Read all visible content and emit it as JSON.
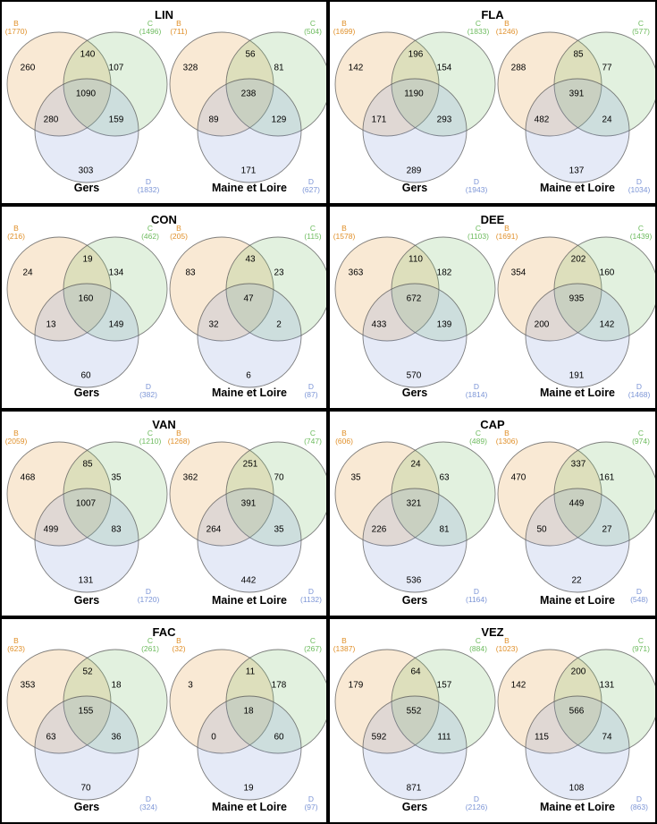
{
  "colors": {
    "B": "#E0902A",
    "C": "#6DBB5E",
    "D": "#7C95D6"
  },
  "set_names": [
    "B",
    "C",
    "D"
  ],
  "locations": [
    "Gers",
    "Maine et Loire"
  ],
  "panels": [
    {
      "title": "LIN",
      "venns": [
        {
          "location": "Gers",
          "totals": {
            "B": "(1770)",
            "C": "(1496)",
            "D": "(1832)"
          },
          "regions": {
            "b": "260",
            "c": "107",
            "d": "303",
            "bc": "140",
            "bd": "280",
            "cd": "159",
            "bcd": "1090"
          }
        },
        {
          "location": "Maine et Loire",
          "totals": {
            "B": "(711)",
            "C": "(504)",
            "D": "(627)"
          },
          "regions": {
            "b": "328",
            "c": "81",
            "d": "171",
            "bc": "56",
            "bd": "89",
            "cd": "129",
            "bcd": "238"
          }
        }
      ]
    },
    {
      "title": "FLA",
      "venns": [
        {
          "location": "Gers",
          "totals": {
            "B": "(1699)",
            "C": "(1833)",
            "D": "(1943)"
          },
          "regions": {
            "b": "142",
            "c": "154",
            "d": "289",
            "bc": "196",
            "bd": "171",
            "cd": "293",
            "bcd": "1190"
          }
        },
        {
          "location": "Maine et Loire",
          "totals": {
            "B": "(1246)",
            "C": "(577)",
            "D": "(1034)"
          },
          "regions": {
            "b": "288",
            "c": "77",
            "d": "137",
            "bc": "85",
            "bd": "482",
            "cd": "24",
            "bcd": "391"
          }
        }
      ]
    },
    {
      "title": "CON",
      "venns": [
        {
          "location": "Gers",
          "totals": {
            "B": "(216)",
            "C": "(462)",
            "D": "(382)"
          },
          "regions": {
            "b": "24",
            "c": "134",
            "d": "60",
            "bc": "19",
            "bd": "13",
            "cd": "149",
            "bcd": "160"
          }
        },
        {
          "location": "Maine et Loire",
          "totals": {
            "B": "(205)",
            "C": "(115)",
            "D": "(87)"
          },
          "regions": {
            "b": "83",
            "c": "23",
            "d": "6",
            "bc": "43",
            "bd": "32",
            "cd": "2",
            "bcd": "47"
          }
        }
      ]
    },
    {
      "title": "DEE",
      "venns": [
        {
          "location": "Gers",
          "totals": {
            "B": "(1578)",
            "C": "(1103)",
            "D": "(1814)"
          },
          "regions": {
            "b": "363",
            "c": "182",
            "d": "570",
            "bc": "110",
            "bd": "433",
            "cd": "139",
            "bcd": "672"
          }
        },
        {
          "location": "Maine et Loire",
          "totals": {
            "B": "(1691)",
            "C": "(1439)",
            "D": "(1468)"
          },
          "regions": {
            "b": "354",
            "c": "160",
            "d": "191",
            "bc": "202",
            "bd": "200",
            "cd": "142",
            "bcd": "935"
          }
        }
      ]
    },
    {
      "title": "VAN",
      "venns": [
        {
          "location": "Gers",
          "totals": {
            "B": "(2059)",
            "C": "(1210)",
            "D": "(1720)"
          },
          "regions": {
            "b": "468",
            "c": "35",
            "d": "131",
            "bc": "85",
            "bd": "499",
            "cd": "83",
            "bcd": "1007"
          }
        },
        {
          "location": "Maine et Loire",
          "totals": {
            "B": "(1268)",
            "C": "(747)",
            "D": "(1132)"
          },
          "regions": {
            "b": "362",
            "c": "70",
            "d": "442",
            "bc": "251",
            "bd": "264",
            "cd": "35",
            "bcd": "391"
          }
        }
      ]
    },
    {
      "title": "CAP",
      "venns": [
        {
          "location": "Gers",
          "totals": {
            "B": "(606)",
            "C": "(489)",
            "D": "(1164)"
          },
          "regions": {
            "b": "35",
            "c": "63",
            "d": "536",
            "bc": "24",
            "bd": "226",
            "cd": "81",
            "bcd": "321"
          }
        },
        {
          "location": "Maine et Loire",
          "totals": {
            "B": "(1306)",
            "C": "(974)",
            "D": "(548)"
          },
          "regions": {
            "b": "470",
            "c": "161",
            "d": "22",
            "bc": "337",
            "bd": "50",
            "cd": "27",
            "bcd": "449"
          }
        }
      ]
    },
    {
      "title": "FAC",
      "venns": [
        {
          "location": "Gers",
          "totals": {
            "B": "(623)",
            "C": "(261)",
            "D": "(324)"
          },
          "regions": {
            "b": "353",
            "c": "18",
            "d": "70",
            "bc": "52",
            "bd": "63",
            "cd": "36",
            "bcd": "155"
          }
        },
        {
          "location": "Maine et Loire",
          "totals": {
            "B": "(32)",
            "C": "(267)",
            "D": "(97)"
          },
          "regions": {
            "b": "3",
            "c": "178",
            "d": "19",
            "bc": "11",
            "bd": "0",
            "cd": "60",
            "bcd": "18"
          }
        }
      ]
    },
    {
      "title": "VEZ",
      "venns": [
        {
          "location": "Gers",
          "totals": {
            "B": "(1387)",
            "C": "(884)",
            "D": "(2126)"
          },
          "regions": {
            "b": "179",
            "c": "157",
            "d": "871",
            "bc": "64",
            "bd": "592",
            "cd": "111",
            "bcd": "552"
          }
        },
        {
          "location": "Maine et Loire",
          "totals": {
            "B": "(1023)",
            "C": "(971)",
            "D": "(863)"
          },
          "regions": {
            "b": "142",
            "c": "131",
            "d": "108",
            "bc": "200",
            "bd": "115",
            "cd": "74",
            "bcd": "566"
          }
        }
      ]
    }
  ]
}
